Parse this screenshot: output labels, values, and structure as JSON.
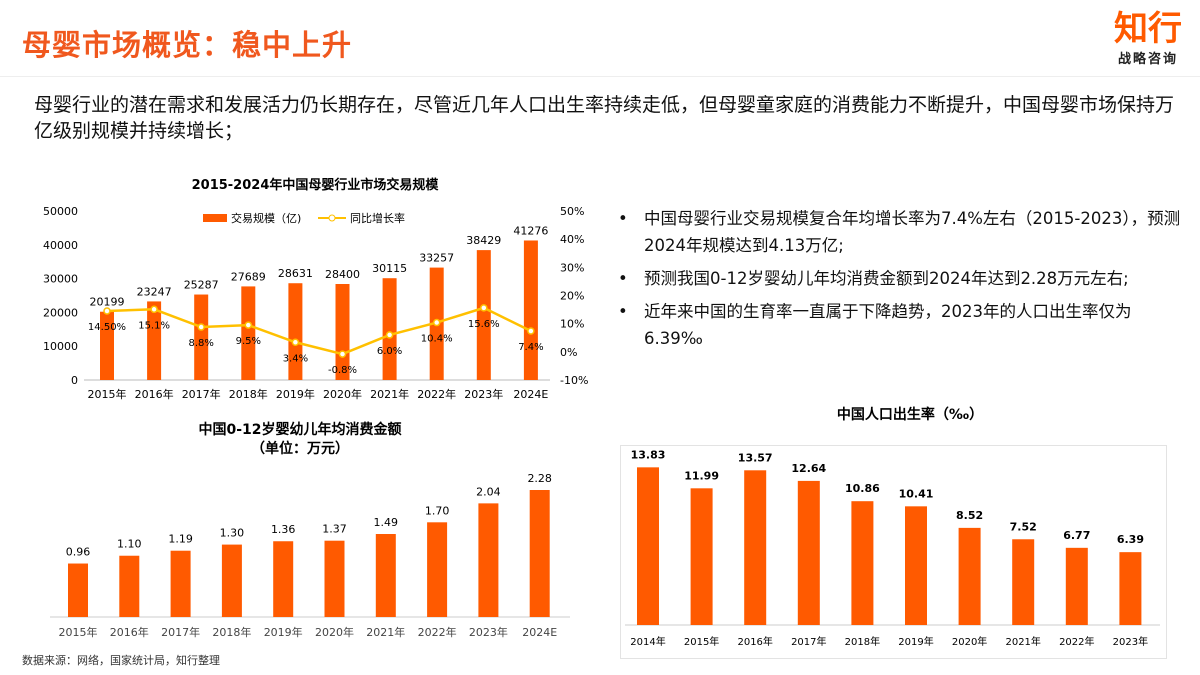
{
  "header": {
    "title": "母婴市场概览：稳中上升",
    "logo_main": "知行",
    "logo_sub": "战略咨询"
  },
  "intro": "母婴行业的潜在需求和发展活力仍长期存在，尽管近几年人口出生率持续走低，但母婴童家庭的消费能力不断提升，中国母婴市场保持万亿级别规模并持续增长；",
  "bullets": [
    "中国母婴行业交易规模复合年均增长率为7.4%左右（2015-2023），预测2024年规模达到4.13万亿;",
    "预测我国0-12岁婴幼儿年均消费金额到2024年达到2.28万元左右;",
    "近年来中国的生育率一直属于下降趋势，2023年的人口出生率仅为6.39‰"
  ],
  "source": "数据来源：网络，国家统计局，知行整理",
  "colors": {
    "accent": "#F0581E",
    "bar": "#FF5A00",
    "line": "#FFC000"
  },
  "chart_data": [
    {
      "type": "bar+line",
      "title": "2015-2024年中国母婴行业市场交易规模",
      "categories": [
        "2015年",
        "2016年",
        "2017年",
        "2018年",
        "2019年",
        "2020年",
        "2021年",
        "2022年",
        "2023年",
        "2024E"
      ],
      "series": [
        {
          "name": "交易规模（亿)",
          "type": "bar",
          "values": [
            20199,
            23247,
            25287,
            27689,
            28631,
            28400,
            30115,
            33257,
            38429,
            41276
          ],
          "labels": [
            "20199",
            "23247",
            "25287",
            "27689",
            "28631",
            "28400",
            "30115",
            "33257",
            "38429",
            "41276"
          ]
        },
        {
          "name": "同比增长率",
          "type": "line",
          "axis": "right",
          "values": [
            14.5,
            15.1,
            8.8,
            9.5,
            3.4,
            -0.8,
            6.0,
            10.4,
            15.6,
            7.4
          ],
          "labels": [
            "14.50%",
            "15.1%",
            "8.8%",
            "9.5%",
            "3.4%",
            "-0.8%",
            "6.0%",
            "10.4%",
            "15.6%",
            "7.4%"
          ]
        }
      ],
      "ylim": [
        0,
        50000
      ],
      "yticks": [
        "0",
        "10000",
        "20000",
        "30000",
        "40000",
        "50000"
      ],
      "y2lim": [
        -10,
        50
      ],
      "y2ticks": [
        "-10%",
        "0%",
        "10%",
        "20%",
        "30%",
        "40%",
        "50%"
      ],
      "legend": "top"
    },
    {
      "type": "bar",
      "title": "中国0-12岁婴幼儿年均消费金额",
      "subtitle": "（单位：万元）",
      "categories": [
        "2015年",
        "2016年",
        "2017年",
        "2018年",
        "2019年",
        "2020年",
        "2021年",
        "2022年",
        "2023年",
        "2024E"
      ],
      "values": [
        0.96,
        1.1,
        1.19,
        1.3,
        1.36,
        1.37,
        1.49,
        1.7,
        2.04,
        2.28
      ],
      "labels": [
        "0.96",
        "1.10",
        "1.19",
        "1.30",
        "1.36",
        "1.37",
        "1.49",
        "1.70",
        "2.04",
        "2.28"
      ]
    },
    {
      "type": "bar",
      "title": "中国人口出生率（‰）",
      "categories": [
        "2014年",
        "2015年",
        "2016年",
        "2017年",
        "2018年",
        "2019年",
        "2020年",
        "2021年",
        "2022年",
        "2023年"
      ],
      "values": [
        13.83,
        11.99,
        13.57,
        12.64,
        10.86,
        10.41,
        8.52,
        7.52,
        6.77,
        6.39
      ],
      "labels": [
        "13.83",
        "11.99",
        "13.57",
        "12.64",
        "10.86",
        "10.41",
        "8.52",
        "7.52",
        "6.77",
        "6.39"
      ]
    }
  ]
}
